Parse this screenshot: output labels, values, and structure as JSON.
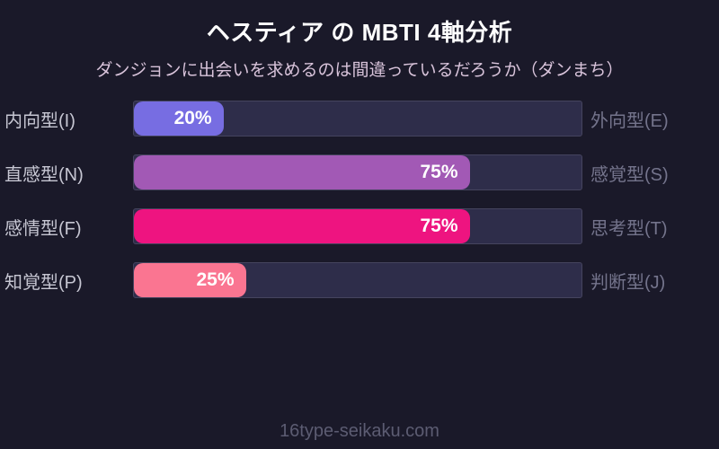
{
  "header": {
    "title": "ヘスティア の MBTI 4軸分析",
    "subtitle": "ダンジョンに出会いを求めるのは間違っているだろうか（ダンまち）"
  },
  "footer": {
    "site_label": "16type-seikaku.com"
  },
  "colors": {
    "background": "#1a1929",
    "track": "#2e2d4a",
    "track_border": "#45445e",
    "title_text": "#ffffff",
    "subtitle_text": "#d8c3da",
    "left_label_text": "#c6c6d2",
    "right_label_text": "#74748c",
    "footer_text": "#5c5c72"
  },
  "chart_data": {
    "type": "bar",
    "orientation": "horizontal",
    "title": "ヘスティア の MBTI 4軸分析",
    "subtitle": "ダンジョンに出会いを求めるのは間違っているだろうか（ダンまち）",
    "xlim": [
      0,
      100
    ],
    "unit": "%",
    "grid": false,
    "legend": false,
    "axes": [
      {
        "left_label": "内向型(I)",
        "right_label": "外向型(E)",
        "value_pct": 20,
        "bar_color": "#776de2"
      },
      {
        "left_label": "直感型(N)",
        "right_label": "感覚型(S)",
        "value_pct": 75,
        "bar_color": "#a259b5"
      },
      {
        "left_label": "感情型(F)",
        "right_label": "思考型(T)",
        "value_pct": 75,
        "bar_color": "#ee1480"
      },
      {
        "left_label": "知覚型(P)",
        "right_label": "判断型(J)",
        "value_pct": 25,
        "bar_color": "#fa7591"
      }
    ]
  }
}
